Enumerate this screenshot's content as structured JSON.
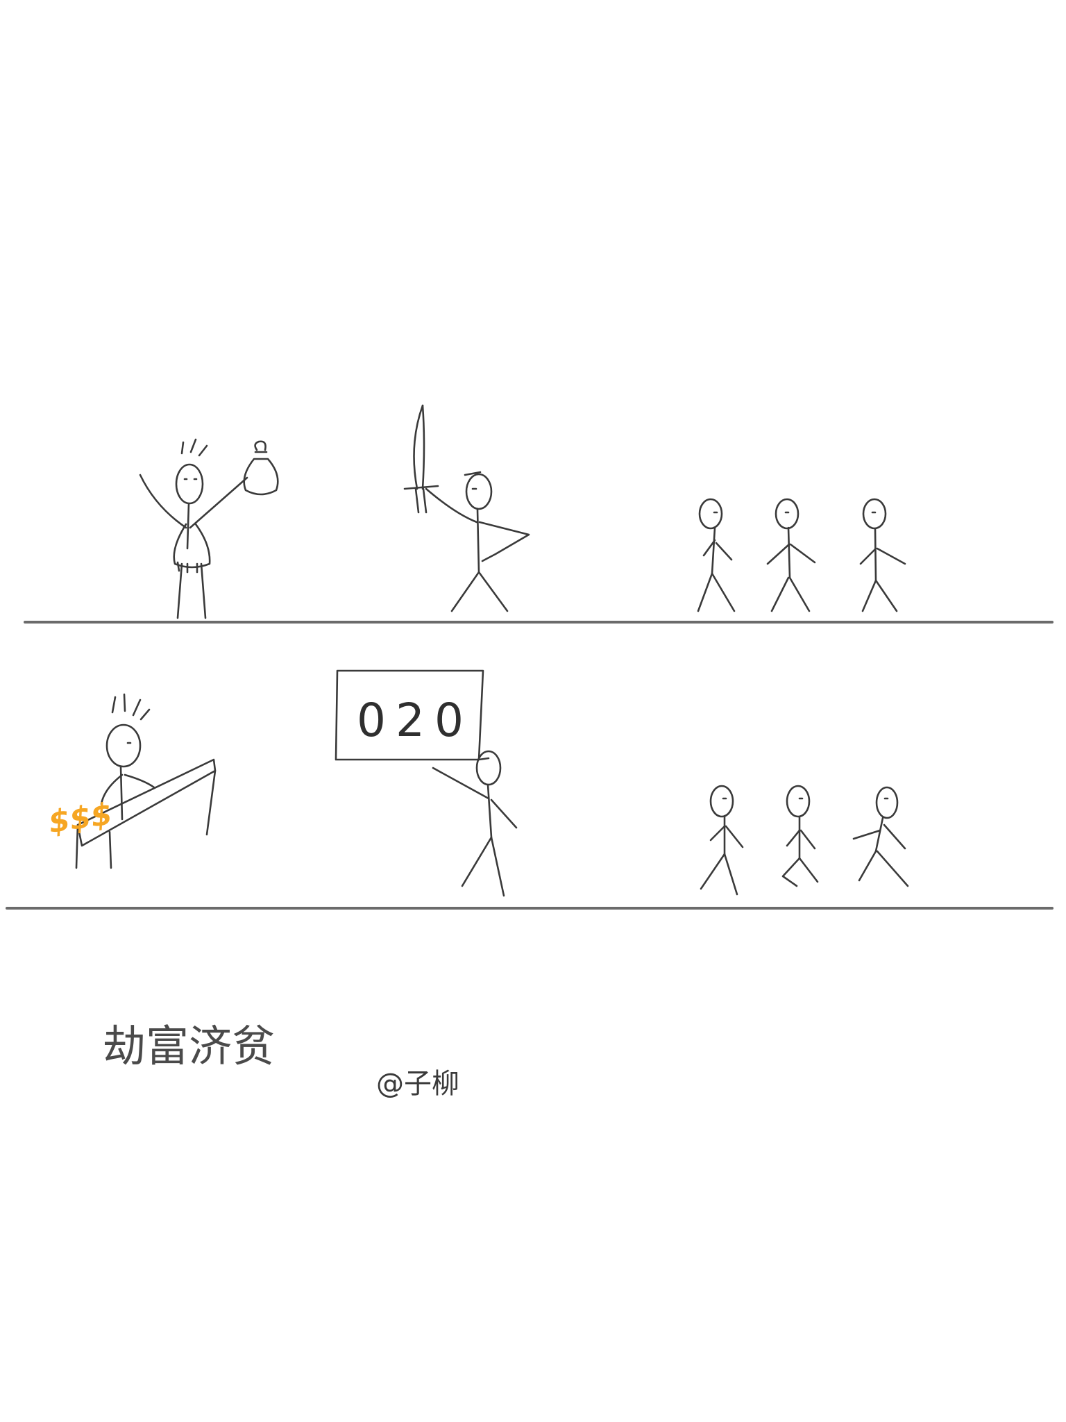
{
  "panel2": {
    "sign_text": "020",
    "money_text": "$$$"
  },
  "caption": {
    "text": "劫富济贫",
    "signature": "@子柳"
  },
  "colors": {
    "pencil": "#3a3a3a",
    "money": "#f6a623",
    "background": "#ffffff"
  }
}
